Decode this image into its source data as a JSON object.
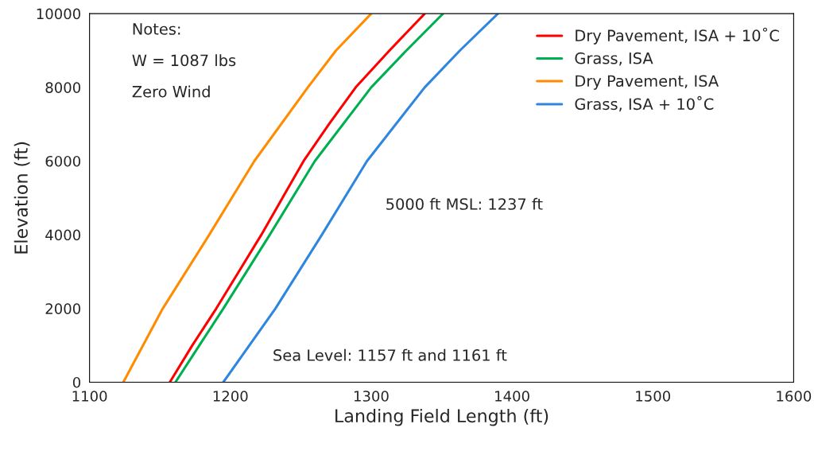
{
  "chart_data": {
    "type": "line",
    "xlabel": "Landing Field Length (ft)",
    "ylabel": "Elevation (ft)",
    "xlim": [
      1100,
      1600
    ],
    "xticks": [
      1100,
      1200,
      1300,
      1400,
      1500,
      1600
    ],
    "ylim": [
      0,
      10000
    ],
    "yticks": [
      0,
      2000,
      4000,
      6000,
      8000,
      10000
    ],
    "grid": false,
    "legend": "top right",
    "marker": "none",
    "line_style": "solid",
    "series": [
      {
        "name": "Dry Pavement, ISA + 10˚C",
        "color": "#ff0000",
        "x": [
          1157,
          1173,
          1190,
          1206,
          1222,
          1237,
          1252,
          1270,
          1289,
          1313,
          1338
        ],
        "values": [
          0,
          1000,
          2000,
          3000,
          4000,
          5000,
          6000,
          7000,
          8000,
          9000,
          10000
        ]
      },
      {
        "name": "Grass, ISA",
        "color": "#00b050",
        "x": [
          1161,
          1195,
          1228,
          1260,
          1300,
          1325,
          1351
        ],
        "values": [
          0,
          2000,
          4000,
          6000,
          8000,
          9000,
          10000
        ]
      },
      {
        "name": "Dry Pavement, ISA",
        "color": "#ff8c00",
        "x": [
          1124,
          1152,
          1185,
          1217,
          1255,
          1275,
          1300
        ],
        "values": [
          0,
          2000,
          4000,
          6000,
          8000,
          9000,
          10000
        ]
      },
      {
        "name": "Grass, ISA + 10˚C",
        "color": "#2e86de",
        "x": [
          1195,
          1232,
          1265,
          1297,
          1338,
          1363,
          1390
        ],
        "values": [
          0,
          2000,
          4000,
          6000,
          8000,
          9000,
          10000
        ]
      }
    ],
    "annotations": [
      "Notes:",
      "W = 1087 lbs",
      "Zero Wind",
      "5000 ft MSL: 1237 ft",
      "Sea Level: 1157 ft and 1161 ft"
    ]
  }
}
